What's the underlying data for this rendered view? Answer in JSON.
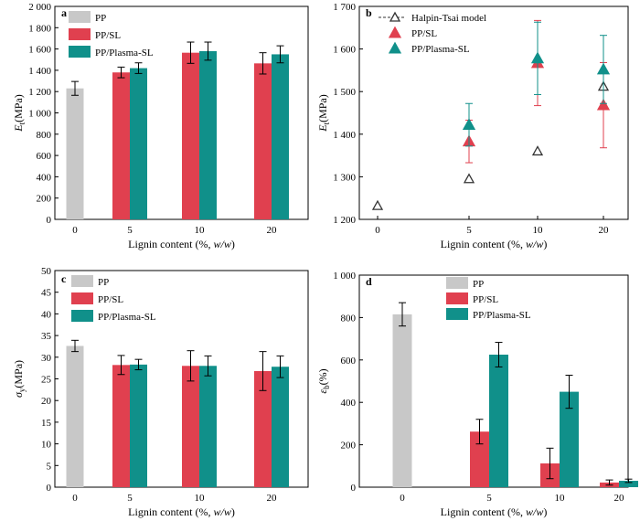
{
  "colors": {
    "PP": "#c8c8c8",
    "PP/SL": "#e0404f",
    "PP/Plasma-SL": "#10908a",
    "model": "#333333"
  },
  "chart_data": [
    {
      "id": "a",
      "type": "bar",
      "panel_label": "a",
      "xlabel_pre": "Lignin content (%, ",
      "xlabel_em": "w/w",
      "xlabel_post": ")",
      "ylabel_main": "E",
      "ylabel_sub": "t",
      "ylabel_unit": "(MPa)",
      "ylim": [
        0,
        2000
      ],
      "yticks": [
        "0",
        "200",
        "400",
        "600",
        "800",
        "1 000",
        "1 200",
        "1 400",
        "1 600",
        "1 800",
        "2 000"
      ],
      "categories": [
        "0",
        "5",
        "10",
        "20"
      ],
      "legend": [
        "PP",
        "PP/SL",
        "PP/Plasma-SL"
      ],
      "series": [
        {
          "name": "PP",
          "values": [
            1230,
            null,
            null,
            null
          ],
          "errors": [
            65,
            null,
            null,
            null
          ]
        },
        {
          "name": "PP/SL",
          "values": [
            null,
            1380,
            1565,
            1465
          ],
          "errors": [
            null,
            50,
            100,
            100
          ]
        },
        {
          "name": "PP/Plasma-SL",
          "values": [
            null,
            1420,
            1580,
            1550
          ],
          "errors": [
            null,
            50,
            85,
            80
          ]
        }
      ]
    },
    {
      "id": "b",
      "type": "scatter",
      "panel_label": "b",
      "xlabel_pre": "Lignin content (%, ",
      "xlabel_em": "w/w",
      "xlabel_post": ")",
      "ylabel_main": "E",
      "ylabel_sub": "t",
      "ylabel_unit": "(MPa)",
      "ylim": [
        1200,
        1700
      ],
      "yticks": [
        "1 200",
        "1 300",
        "1 400",
        "1 500",
        "1 600",
        "1 700"
      ],
      "categories": [
        "0",
        "5",
        "10",
        "20"
      ],
      "legend": [
        "Halpin-Tsai model",
        "PP/SL",
        "PP/Plasma-SL"
      ],
      "series": [
        {
          "name": "Halpin-Tsai model",
          "values": [
            1232,
            1295,
            1360,
            1512
          ],
          "errors": [
            null,
            null,
            null,
            null
          ]
        },
        {
          "name": "PP/SL",
          "values": [
            null,
            1383,
            1567,
            1468
          ],
          "errors": [
            null,
            50,
            100,
            100
          ]
        },
        {
          "name": "PP/Plasma-SL",
          "values": [
            null,
            1422,
            1578,
            1552
          ],
          "errors": [
            null,
            50,
            85,
            80
          ]
        }
      ]
    },
    {
      "id": "c",
      "type": "bar",
      "panel_label": "c",
      "xlabel_pre": "Lignin content (%, ",
      "xlabel_em": "w/w",
      "xlabel_post": ")",
      "ylabel_main": "σ",
      "ylabel_sub": "y",
      "ylabel_unit": "(MPa)",
      "ylim": [
        0,
        50
      ],
      "yticks": [
        "0",
        "5",
        "10",
        "15",
        "20",
        "25",
        "30",
        "35",
        "40",
        "45",
        "50"
      ],
      "categories": [
        "0",
        "5",
        "10",
        "20"
      ],
      "legend": [
        "PP",
        "PP/SL",
        "PP/Plasma-SL"
      ],
      "series": [
        {
          "name": "PP",
          "values": [
            32.6,
            null,
            null,
            null
          ],
          "errors": [
            1.3,
            null,
            null,
            null
          ]
        },
        {
          "name": "PP/SL",
          "values": [
            null,
            28.2,
            28.0,
            26.8
          ],
          "errors": [
            null,
            2.2,
            3.5,
            4.5
          ]
        },
        {
          "name": "PP/Plasma-SL",
          "values": [
            null,
            28.3,
            28.0,
            27.8
          ],
          "errors": [
            null,
            1.2,
            2.3,
            2.5
          ]
        }
      ]
    },
    {
      "id": "d",
      "type": "bar",
      "panel_label": "d",
      "xlabel_pre": "Lignin content (%, ",
      "xlabel_em": "w/w",
      "xlabel_post": ")",
      "ylabel_main": "ε",
      "ylabel_sub": "b",
      "ylabel_unit": "(%)",
      "ylim": [
        0,
        1000
      ],
      "yticks": [
        "0",
        "200",
        "400",
        "600",
        "800",
        "1 000"
      ],
      "categories": [
        "0",
        "5",
        "10",
        "20"
      ],
      "legend": [
        "PP",
        "PP/SL",
        "PP/Plasma-SL"
      ],
      "series": [
        {
          "name": "PP",
          "values": [
            815,
            null,
            null,
            null
          ],
          "errors": [
            55,
            null,
            null,
            null
          ]
        },
        {
          "name": "PP/SL",
          "values": [
            null,
            262,
            112,
            22
          ],
          "errors": [
            null,
            58,
            72,
            12
          ]
        },
        {
          "name": "PP/Plasma-SL",
          "values": [
            null,
            625,
            450,
            30
          ],
          "errors": [
            null,
            58,
            78,
            8
          ]
        }
      ]
    }
  ]
}
